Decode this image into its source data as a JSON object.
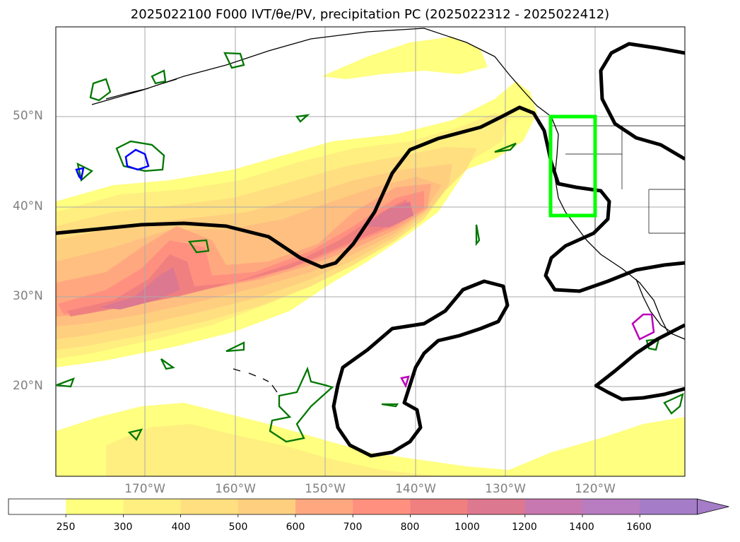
{
  "title": "2025022100 F000 IVT/θe/PV, precipitation PC (2025022312 - 2025022412)",
  "map": {
    "lat_labels": [
      "50°N",
      "40°N",
      "30°N",
      "20°N"
    ],
    "lon_labels": [
      "170°W",
      "160°W",
      "150°W",
      "140°W",
      "130°W",
      "120°W"
    ],
    "ivt_fill_colors": [
      "#ffff80",
      "#ffef80",
      "#ffdf80",
      "#ffcf80",
      "#ffbf80",
      "#ffa080",
      "#ff8080",
      "#e87090",
      "#d070a8",
      "#b070c8"
    ],
    "box_color": "#00ff00",
    "theta_e_contour_color": "#000000",
    "pv_contour_colors": [
      "#007700",
      "#0000ff",
      "#bb00bb"
    ],
    "coastline_color": "#000000"
  },
  "colorbar": {
    "tick_labels": [
      "250",
      "300",
      "400",
      "500",
      "600",
      "700",
      "800",
      "1000",
      "1200",
      "1400",
      "1600"
    ],
    "colors": [
      "#ffffff",
      "#ffff80",
      "#ffef80",
      "#ffdf80",
      "#ffcf80",
      "#ffa880",
      "#ff9080",
      "#f08080",
      "#dc7890",
      "#c878b0",
      "#b87cc0",
      "#a47cc8"
    ],
    "extend": "max"
  }
}
